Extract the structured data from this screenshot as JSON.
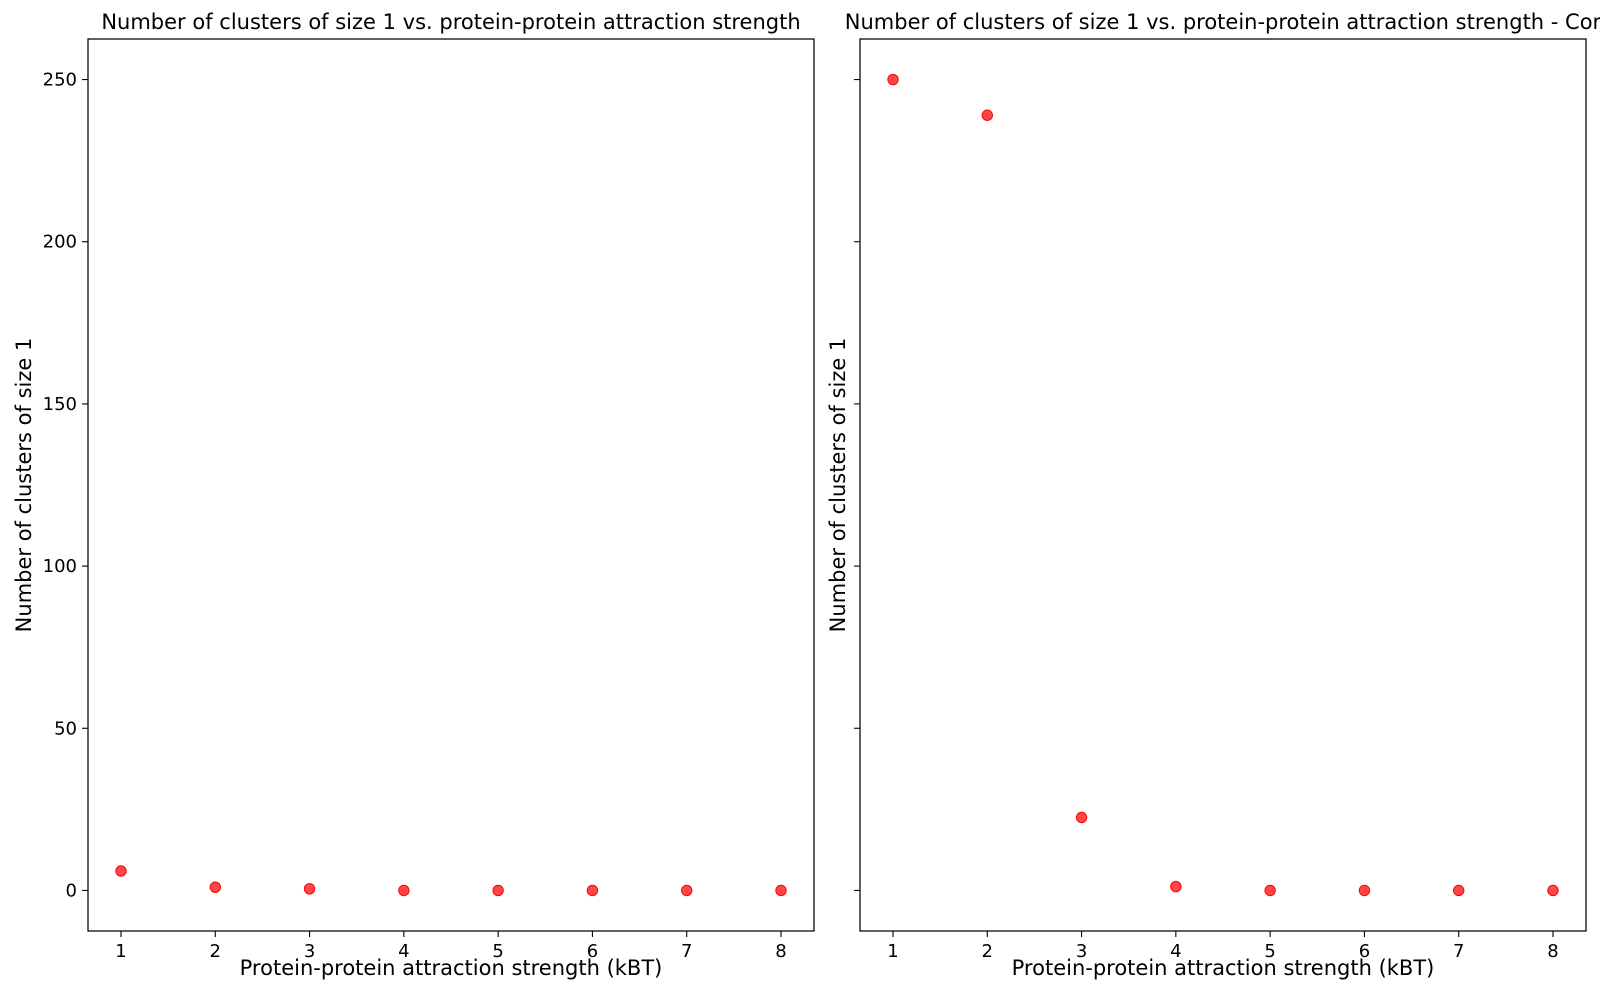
{
  "chart_data": [
    {
      "type": "scatter",
      "title": "Number of clusters of size 1 vs. protein-protein attraction strength",
      "xlabel": "Protein-protein attraction strength (kBT)",
      "ylabel": "Number of clusters of size 1",
      "x": [
        1,
        2,
        3,
        4,
        5,
        6,
        7,
        8
      ],
      "series": [
        {
          "values": [
            6,
            1,
            0.5,
            0,
            0,
            0,
            0,
            0
          ],
          "color": "#ff0000"
        }
      ],
      "xlim": [
        0.65,
        8.35
      ],
      "ylim": [
        -12.5,
        262.5
      ],
      "xticks": [
        1,
        2,
        3,
        4,
        5,
        6,
        7,
        8
      ],
      "xtick_labels": [
        "1",
        "2",
        "3",
        "4",
        "5",
        "6",
        "7",
        "8"
      ],
      "yticks": [
        0,
        50,
        100,
        150,
        200,
        250
      ],
      "ytick_labels": [
        "0",
        "50",
        "100",
        "150",
        "200",
        "250"
      ],
      "grid": false,
      "legend": "none"
    },
    {
      "type": "scatter",
      "title": "Number of clusters of size 1 vs. protein-protein attraction strength - Cor",
      "xlabel": "Protein-protein attraction strength (kBT)",
      "ylabel": "Number of clusters of size 1",
      "x": [
        1,
        2,
        3,
        4,
        5,
        6,
        7,
        8
      ],
      "series": [
        {
          "values": [
            250,
            239,
            22.5,
            1.2,
            0,
            0,
            0,
            0
          ],
          "color": "#ff0000"
        }
      ],
      "xlim": [
        0.65,
        8.35
      ],
      "ylim": [
        -12.5,
        262.5
      ],
      "xticks": [
        1,
        2,
        3,
        4,
        5,
        6,
        7,
        8
      ],
      "xtick_labels": [
        "1",
        "2",
        "3",
        "4",
        "5",
        "6",
        "7",
        "8"
      ],
      "yticks": [
        0,
        50,
        100,
        150,
        200,
        250
      ],
      "ytick_labels": [],
      "grid": false,
      "legend": "none"
    }
  ]
}
